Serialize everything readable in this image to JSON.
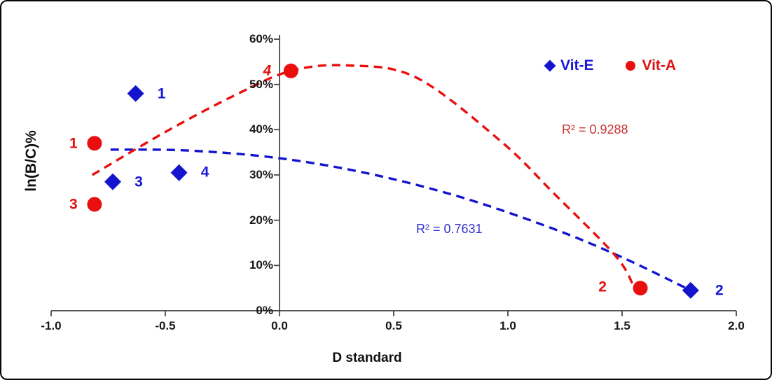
{
  "figure": {
    "background": "#ffffff",
    "border_color": "#060606"
  },
  "chart_data": {
    "type": "scatter",
    "title": "",
    "xlabel": "D standard",
    "ylabel": "ln(B/C)%",
    "xlim": [
      -1.0,
      2.0
    ],
    "ylim": [
      0,
      60
    ],
    "y_unit": "percent",
    "grid": false,
    "legend_position": "top-right-inside",
    "axis_color": "#3f3f3f",
    "x_ticks": [
      {
        "value": -1.0,
        "label": "-1.0"
      },
      {
        "value": -0.5,
        "label": "-0.5"
      },
      {
        "value": 0.0,
        "label": "0.0"
      },
      {
        "value": 0.5,
        "label": "0.5"
      },
      {
        "value": 1.0,
        "label": "1.0"
      },
      {
        "value": 1.5,
        "label": "1.5"
      },
      {
        "value": 2.0,
        "label": "2.0"
      }
    ],
    "y_ticks": [
      {
        "value": 0,
        "label": "0%"
      },
      {
        "value": 10,
        "label": "10%"
      },
      {
        "value": 20,
        "label": "20%"
      },
      {
        "value": 30,
        "label": "30%"
      },
      {
        "value": 40,
        "label": "40%"
      },
      {
        "value": 50,
        "label": "50%"
      },
      {
        "value": 60,
        "label": "60%"
      }
    ],
    "series": [
      {
        "name": "Vit-E",
        "marker": "diamond",
        "color": "#1414CE",
        "label_color": "#1717D6",
        "r_squared": "R² = 0.7631",
        "r_squared_color": "#3333CC",
        "trend_style": "dashed",
        "points": [
          {
            "label": "1",
            "x": -0.63,
            "y": 48,
            "label_dx": 37,
            "label_dy": 0
          },
          {
            "label": "2",
            "x": 1.8,
            "y": 4.5,
            "label_dx": 41,
            "label_dy": 0
          },
          {
            "label": "3",
            "x": -0.73,
            "y": 28.5,
            "label_dx": 37,
            "label_dy": 0
          },
          {
            "label": "4",
            "x": -0.44,
            "y": 30.5,
            "label_dx": 37,
            "label_dy": -1
          }
        ],
        "trend_points": [
          [
            -0.74,
            35.6
          ],
          [
            -0.4,
            35.4
          ],
          [
            0,
            33.7
          ],
          [
            0.4,
            30.2
          ],
          [
            0.8,
            25.0
          ],
          [
            1.2,
            18.1
          ],
          [
            1.5,
            11.8
          ],
          [
            1.8,
            4.5
          ]
        ]
      },
      {
        "name": "Vit-A",
        "marker": "circle",
        "color": "#E90F0F",
        "label_color": "#E01111",
        "r_squared": "R² = 0.9288",
        "r_squared_color": "#CC3333",
        "trend_style": "dashed",
        "points": [
          {
            "label": "1",
            "x": -0.81,
            "y": 37,
            "label_dx": -30,
            "label_dy": 0
          },
          {
            "label": "2",
            "x": 1.58,
            "y": 5,
            "label_dx": -54,
            "label_dy": -2
          },
          {
            "label": "3",
            "x": -0.81,
            "y": 23.5,
            "label_dx": -30,
            "label_dy": 0
          },
          {
            "label": "4",
            "x": 0.05,
            "y": 53,
            "label_dx": -34,
            "label_dy": 0,
            "italic": true
          }
        ],
        "trend_points": [
          [
            -0.82,
            30
          ],
          [
            -0.5,
            39.5
          ],
          [
            -0.2,
            47.5
          ],
          [
            0.05,
            53
          ],
          [
            0.3,
            54.2
          ],
          [
            0.6,
            51.5
          ],
          [
            0.97,
            37.4
          ],
          [
            1.2,
            26
          ],
          [
            1.47,
            12.2
          ],
          [
            1.55,
            5.5
          ]
        ]
      }
    ]
  }
}
